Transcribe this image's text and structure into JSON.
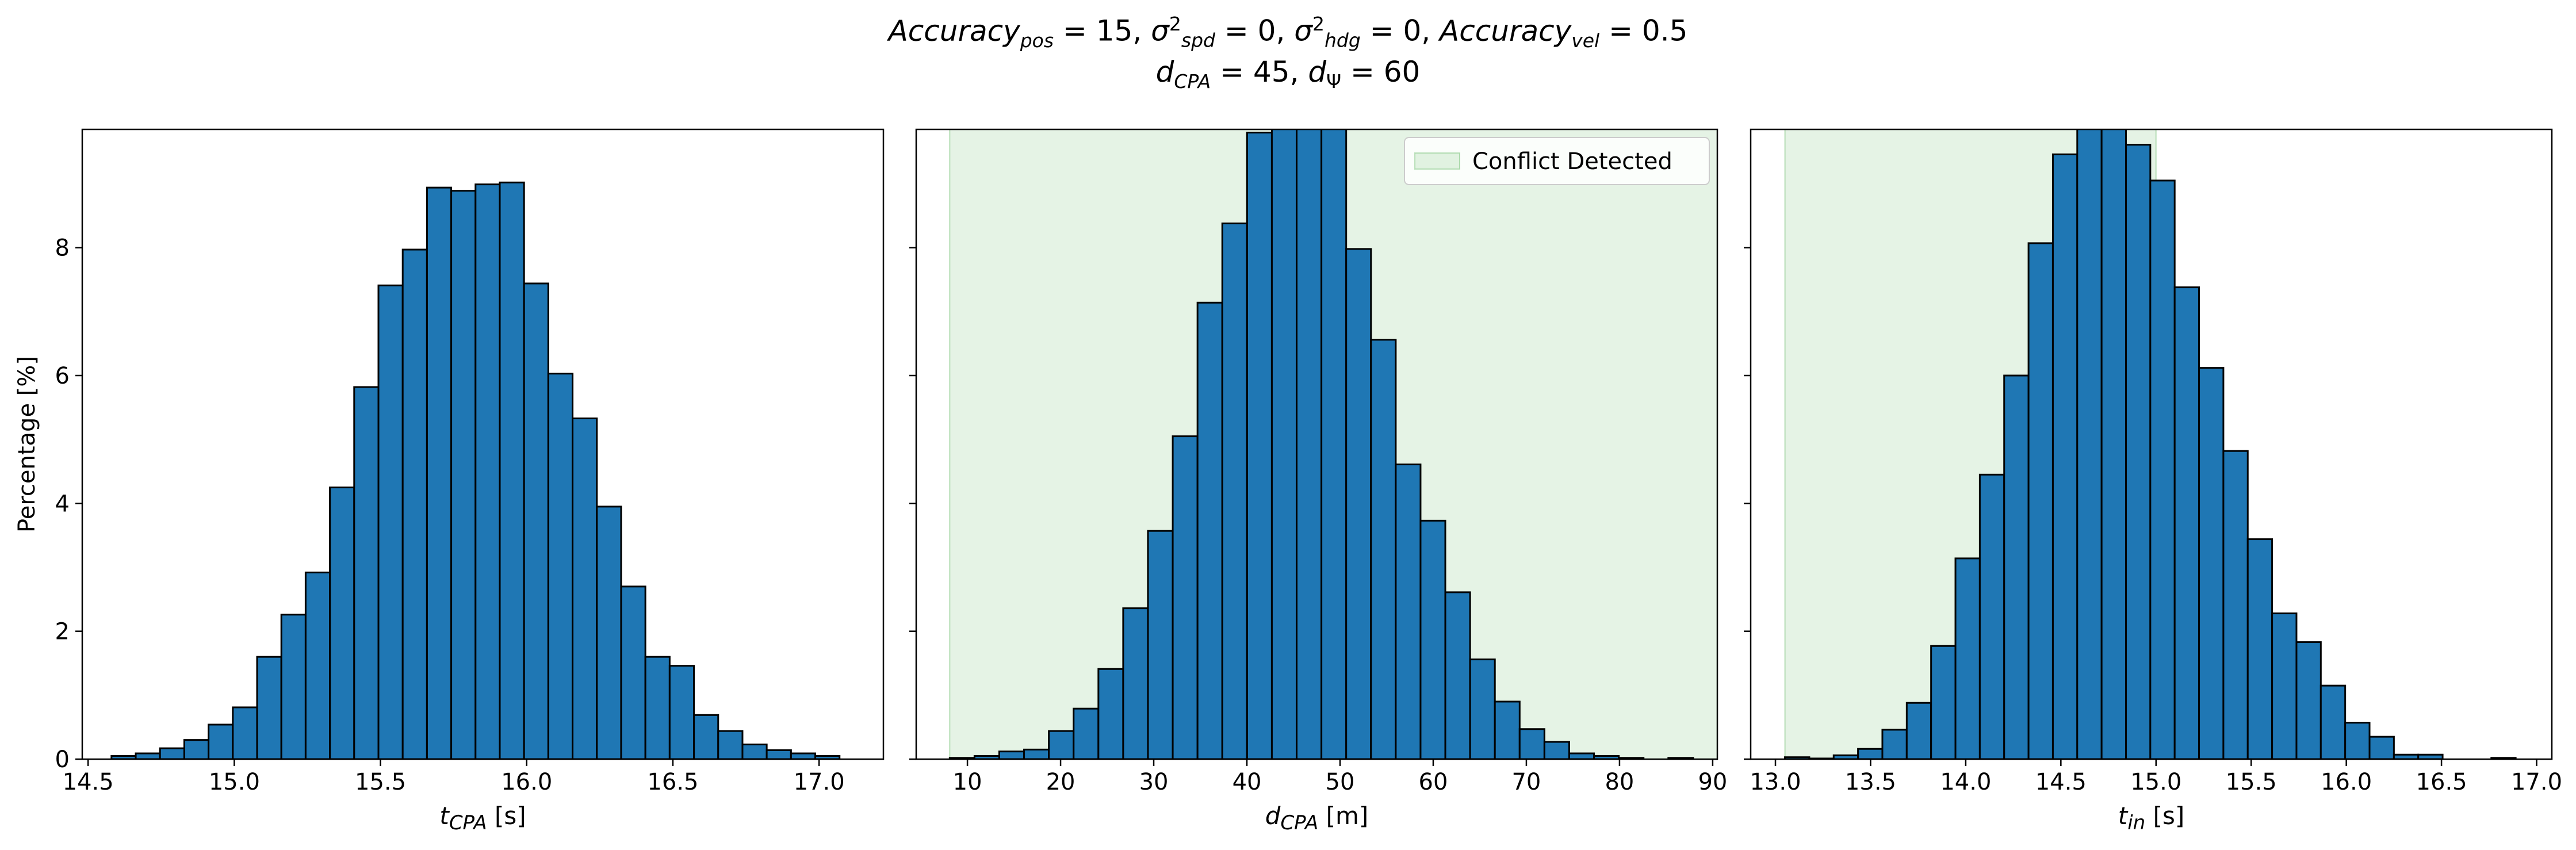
{
  "figure": {
    "title_line1_html": "<i>Accuracy<sub>pos</sub></i> = 15, <i>σ</i><sup>2</sup><sub><i>spd</i></sub> = 0, <i>σ</i><sup>2</sup><sub><i>hdg</i></sub> = 0, <i>Accuracy<sub>vel</sub></i> = 0.5",
    "title_line2_html": "<i>d<sub>CPA</sub></i> = 45, <i>d</i><sub>Ψ</sub> = 60",
    "colors": {
      "bar": "#1f77b4",
      "edge": "#000000",
      "shade": "#2ca02c",
      "shade_opacity": 0.12
    }
  },
  "chart_data": [
    {
      "type": "bar",
      "xlabel_html": "<tspan font-style='italic'>t</tspan><tspan font-style='italic' font-size='34' dy='9'>CPA</tspan><tspan dy='-9'> [s]</tspan>",
      "ylabel": "Percentage [%]",
      "xlim": [
        14.48,
        17.22
      ],
      "ylim": [
        0,
        9.85
      ],
      "xticks": [
        14.5,
        15.0,
        15.5,
        16.0,
        16.5,
        17.0
      ],
      "xtick_labels": [
        "14.5",
        "15.0",
        "15.5",
        "16.0",
        "16.5",
        "17.0"
      ],
      "yticks": [
        0,
        2,
        4,
        6,
        8
      ],
      "ytick_labels": [
        "0",
        "2",
        "4",
        "6",
        "8"
      ],
      "bin_edges": [
        14.58,
        14.663,
        14.746,
        14.829,
        14.912,
        14.995,
        15.078,
        15.161,
        15.244,
        15.327,
        15.41,
        15.493,
        15.576,
        15.659,
        15.742,
        15.825,
        15.908,
        15.991,
        16.074,
        16.157,
        16.24,
        16.323,
        16.406,
        16.489,
        16.572,
        16.655,
        16.738,
        16.821,
        16.904,
        16.987,
        17.07
      ],
      "values": [
        0.05,
        0.09,
        0.17,
        0.3,
        0.54,
        0.81,
        1.6,
        2.26,
        2.92,
        4.25,
        5.82,
        7.41,
        7.97,
        8.94,
        8.89,
        8.99,
        9.02,
        7.44,
        6.03,
        5.33,
        3.95,
        2.7,
        1.6,
        1.46,
        0.69,
        0.44,
        0.23,
        0.14,
        0.09,
        0.05
      ],
      "shade": null,
      "legend": null
    },
    {
      "type": "bar",
      "xlabel_html": "<tspan font-style='italic'>d</tspan><tspan font-style='italic' font-size='34' dy='9'>CPA</tspan><tspan dy='-9'> [m]</tspan>",
      "ylabel": "",
      "xlim": [
        4.5,
        90.5
      ],
      "ylim": [
        0,
        9.85
      ],
      "xticks": [
        10,
        20,
        30,
        40,
        50,
        60,
        70,
        80,
        90
      ],
      "xtick_labels": [
        "10",
        "20",
        "30",
        "40",
        "50",
        "60",
        "70",
        "80",
        "90"
      ],
      "yticks": [
        0,
        2,
        4,
        6,
        8
      ],
      "ytick_labels": [
        "",
        "",
        "",
        "",
        ""
      ],
      "bin_edges": [
        8.1,
        10.76,
        13.42,
        16.08,
        18.74,
        21.4,
        24.06,
        26.72,
        29.38,
        32.04,
        34.7,
        37.36,
        40.02,
        42.68,
        45.34,
        48.0,
        50.66,
        53.32,
        55.98,
        58.64,
        61.3,
        63.96,
        66.62,
        69.28,
        71.94,
        74.6,
        77.26,
        79.92,
        82.58,
        85.24,
        87.9
      ],
      "values": [
        0.02,
        0.05,
        0.12,
        0.15,
        0.44,
        0.79,
        1.41,
        2.36,
        3.57,
        5.05,
        7.14,
        8.38,
        9.8,
        10.5,
        10.6,
        10.3,
        7.98,
        6.56,
        4.61,
        3.73,
        2.61,
        1.56,
        0.9,
        0.47,
        0.27,
        0.09,
        0.05,
        0.02,
        0.0,
        0.02
      ],
      "shade": [
        8.1,
        90.5
      ],
      "legend": {
        "label": "Conflict Detected",
        "position": "upper right"
      }
    },
    {
      "type": "bar",
      "xlabel_html": "<tspan font-style='italic'>t</tspan><tspan font-style='italic' font-size='34' dy='9'>in</tspan><tspan dy='-9'> [s]</tspan>",
      "ylabel": "",
      "xlim": [
        12.87,
        17.08
      ],
      "ylim": [
        0,
        9.85
      ],
      "xticks": [
        13.0,
        13.5,
        14.0,
        14.5,
        15.0,
        15.5,
        16.0,
        16.5,
        17.0
      ],
      "xtick_labels": [
        "13.0",
        "13.5",
        "14.0",
        "14.5",
        "15.0",
        "15.5",
        "16.0",
        "16.5",
        "17.0"
      ],
      "yticks": [
        0,
        2,
        4,
        6,
        8
      ],
      "ytick_labels": [
        "",
        "",
        "",
        "",
        ""
      ],
      "bin_edges": [
        13.05,
        13.178,
        13.306,
        13.434,
        13.562,
        13.69,
        13.818,
        13.946,
        14.074,
        14.202,
        14.33,
        14.458,
        14.586,
        14.714,
        14.842,
        14.97,
        15.098,
        15.226,
        15.354,
        15.482,
        15.61,
        15.738,
        15.866,
        15.994,
        16.122,
        16.25,
        16.378,
        16.506,
        16.634,
        16.762,
        16.89
      ],
      "values": [
        0.03,
        0.01,
        0.06,
        0.16,
        0.46,
        0.88,
        1.77,
        3.14,
        4.45,
        6.0,
        8.07,
        9.46,
        10.3,
        9.9,
        9.61,
        9.05,
        7.38,
        6.12,
        4.82,
        3.44,
        2.28,
        1.83,
        1.15,
        0.57,
        0.35,
        0.07,
        0.07,
        0.0,
        0.0,
        0.02
      ],
      "shade": [
        13.05,
        15.0
      ],
      "legend": null
    }
  ]
}
